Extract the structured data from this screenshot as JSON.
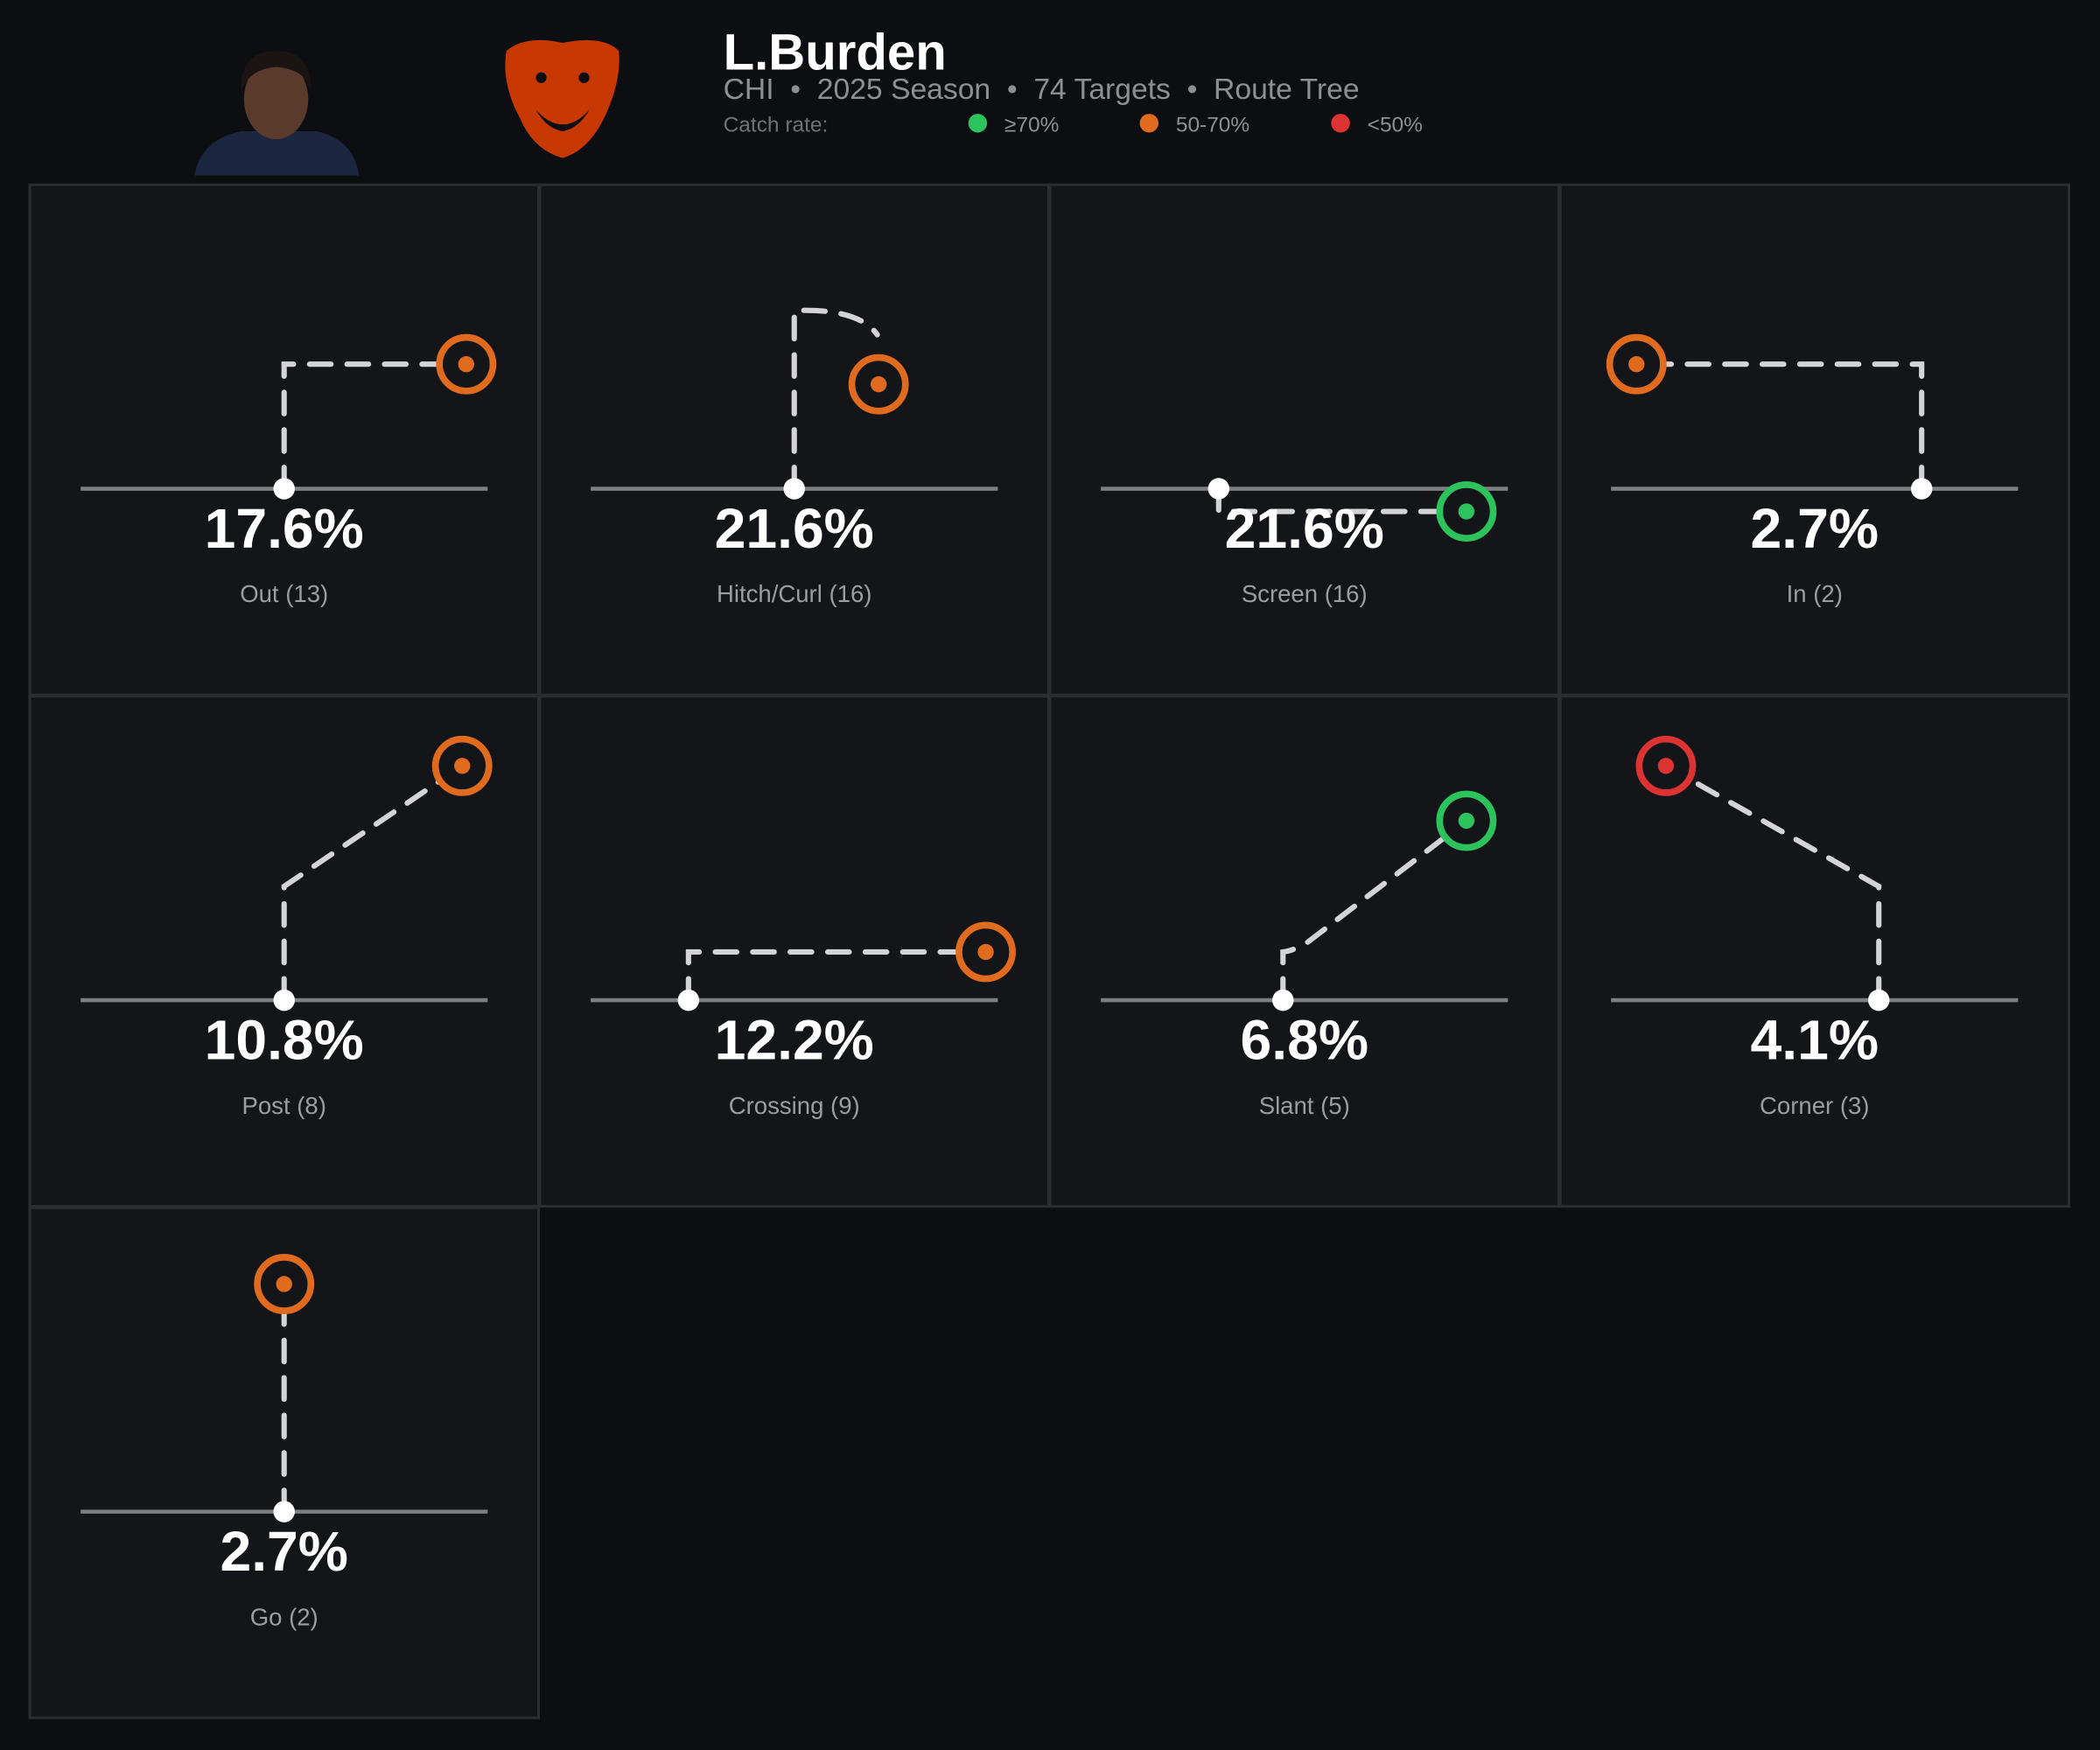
{
  "header": {
    "title": "L.Burden",
    "subtitle": "CHI  •  2025 Season  •  74 Targets  •  Route Tree"
  },
  "legend": {
    "title": "Catch rate:",
    "items": [
      {
        "label": "≥70%",
        "color": "#2cc35c"
      },
      {
        "label": "50-70%",
        "color": "#e06a1e"
      },
      {
        "label": "<50%",
        "color": "#dc3333"
      }
    ]
  },
  "routes": [
    {
      "pct": "17.6%",
      "label": "Out (13)",
      "color": "#e06a1e"
    },
    {
      "pct": "21.6%",
      "label": "Hitch/Curl (16)",
      "color": "#e06a1e"
    },
    {
      "pct": "21.6%",
      "label": "Screen (16)",
      "color": "#2cc35c"
    },
    {
      "pct": "2.7%",
      "label": "In (2)",
      "color": "#e06a1e"
    },
    {
      "pct": "10.8%",
      "label": "Post (8)",
      "color": "#e06a1e"
    },
    {
      "pct": "12.2%",
      "label": "Crossing (9)",
      "color": "#e06a1e"
    },
    {
      "pct": "6.8%",
      "label": "Slant (5)",
      "color": "#2cc35c"
    },
    {
      "pct": "4.1%",
      "label": "Corner (3)",
      "color": "#dc3333"
    },
    {
      "pct": "2.7%",
      "label": "Go (2)",
      "color": "#e06a1e"
    }
  ]
}
